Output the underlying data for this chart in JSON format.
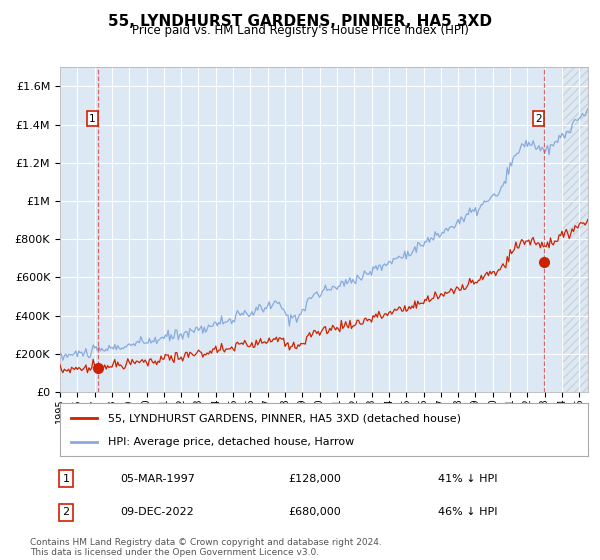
{
  "title": "55, LYNDHURST GARDENS, PINNER, HA5 3XD",
  "subtitle": "Price paid vs. HM Land Registry's House Price Index (HPI)",
  "ylim": [
    0,
    1700000
  ],
  "xlim_start": 1995.0,
  "xlim_end": 2025.5,
  "background_color": "#dce9f5",
  "grid_color": "#ffffff",
  "hpi_color": "#88aadd",
  "price_color": "#cc2200",
  "marker1_x": 1997.18,
  "marker1_y": 128000,
  "marker2_x": 2022.94,
  "marker2_y": 680000,
  "legend_label1": "55, LYNDHURST GARDENS, PINNER, HA5 3XD (detached house)",
  "legend_label2": "HPI: Average price, detached house, Harrow",
  "note1_date": "05-MAR-1997",
  "note1_price": "£128,000",
  "note1_hpi": "41% ↓ HPI",
  "note2_date": "09-DEC-2022",
  "note2_price": "£680,000",
  "note2_hpi": "46% ↓ HPI",
  "footer": "Contains HM Land Registry data © Crown copyright and database right 2024.\nThis data is licensed under the Open Government Licence v3.0.",
  "ytick_labels": [
    "£0",
    "£200K",
    "£400K",
    "£600K",
    "£800K",
    "£1M",
    "£1.2M",
    "£1.4M",
    "£1.6M"
  ],
  "ytick_values": [
    0,
    200000,
    400000,
    600000,
    800000,
    1000000,
    1200000,
    1400000,
    1600000
  ],
  "xtick_years": [
    1995,
    1996,
    1997,
    1998,
    1999,
    2000,
    2001,
    2002,
    2003,
    2004,
    2005,
    2006,
    2007,
    2008,
    2009,
    2010,
    2011,
    2012,
    2013,
    2014,
    2015,
    2016,
    2017,
    2018,
    2019,
    2020,
    2021,
    2022,
    2023,
    2024,
    2025
  ]
}
